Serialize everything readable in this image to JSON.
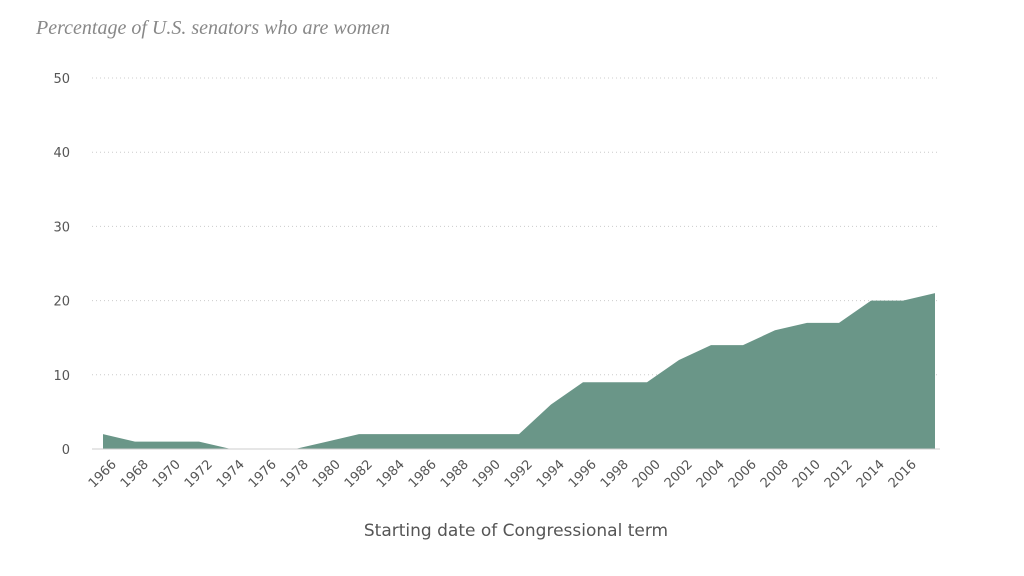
{
  "chart_data": {
    "type": "area",
    "title": "Percentage of U.S. senators who are women",
    "x_label": "Starting date of Congressional term",
    "categories": [
      "1966",
      "1968",
      "1970",
      "1972",
      "1974",
      "1976",
      "1978",
      "1980",
      "1982",
      "1984",
      "1986",
      "1988",
      "1990",
      "1992",
      "1994",
      "1996",
      "1998",
      "2000",
      "2002",
      "2004",
      "2006",
      "2008",
      "2010",
      "2012",
      "2014",
      "2016",
      null
    ],
    "values": [
      2,
      1,
      1,
      1,
      0,
      0,
      0,
      1,
      2,
      2,
      2,
      2,
      2,
      2,
      6,
      9,
      9,
      9,
      12,
      14,
      14,
      16,
      17,
      17,
      20,
      20,
      21
    ],
    "color": "#6a9688",
    "ylim": [
      0,
      50
    ],
    "yticks": [
      0,
      10,
      20,
      30,
      40,
      50
    ],
    "grid": true
  }
}
